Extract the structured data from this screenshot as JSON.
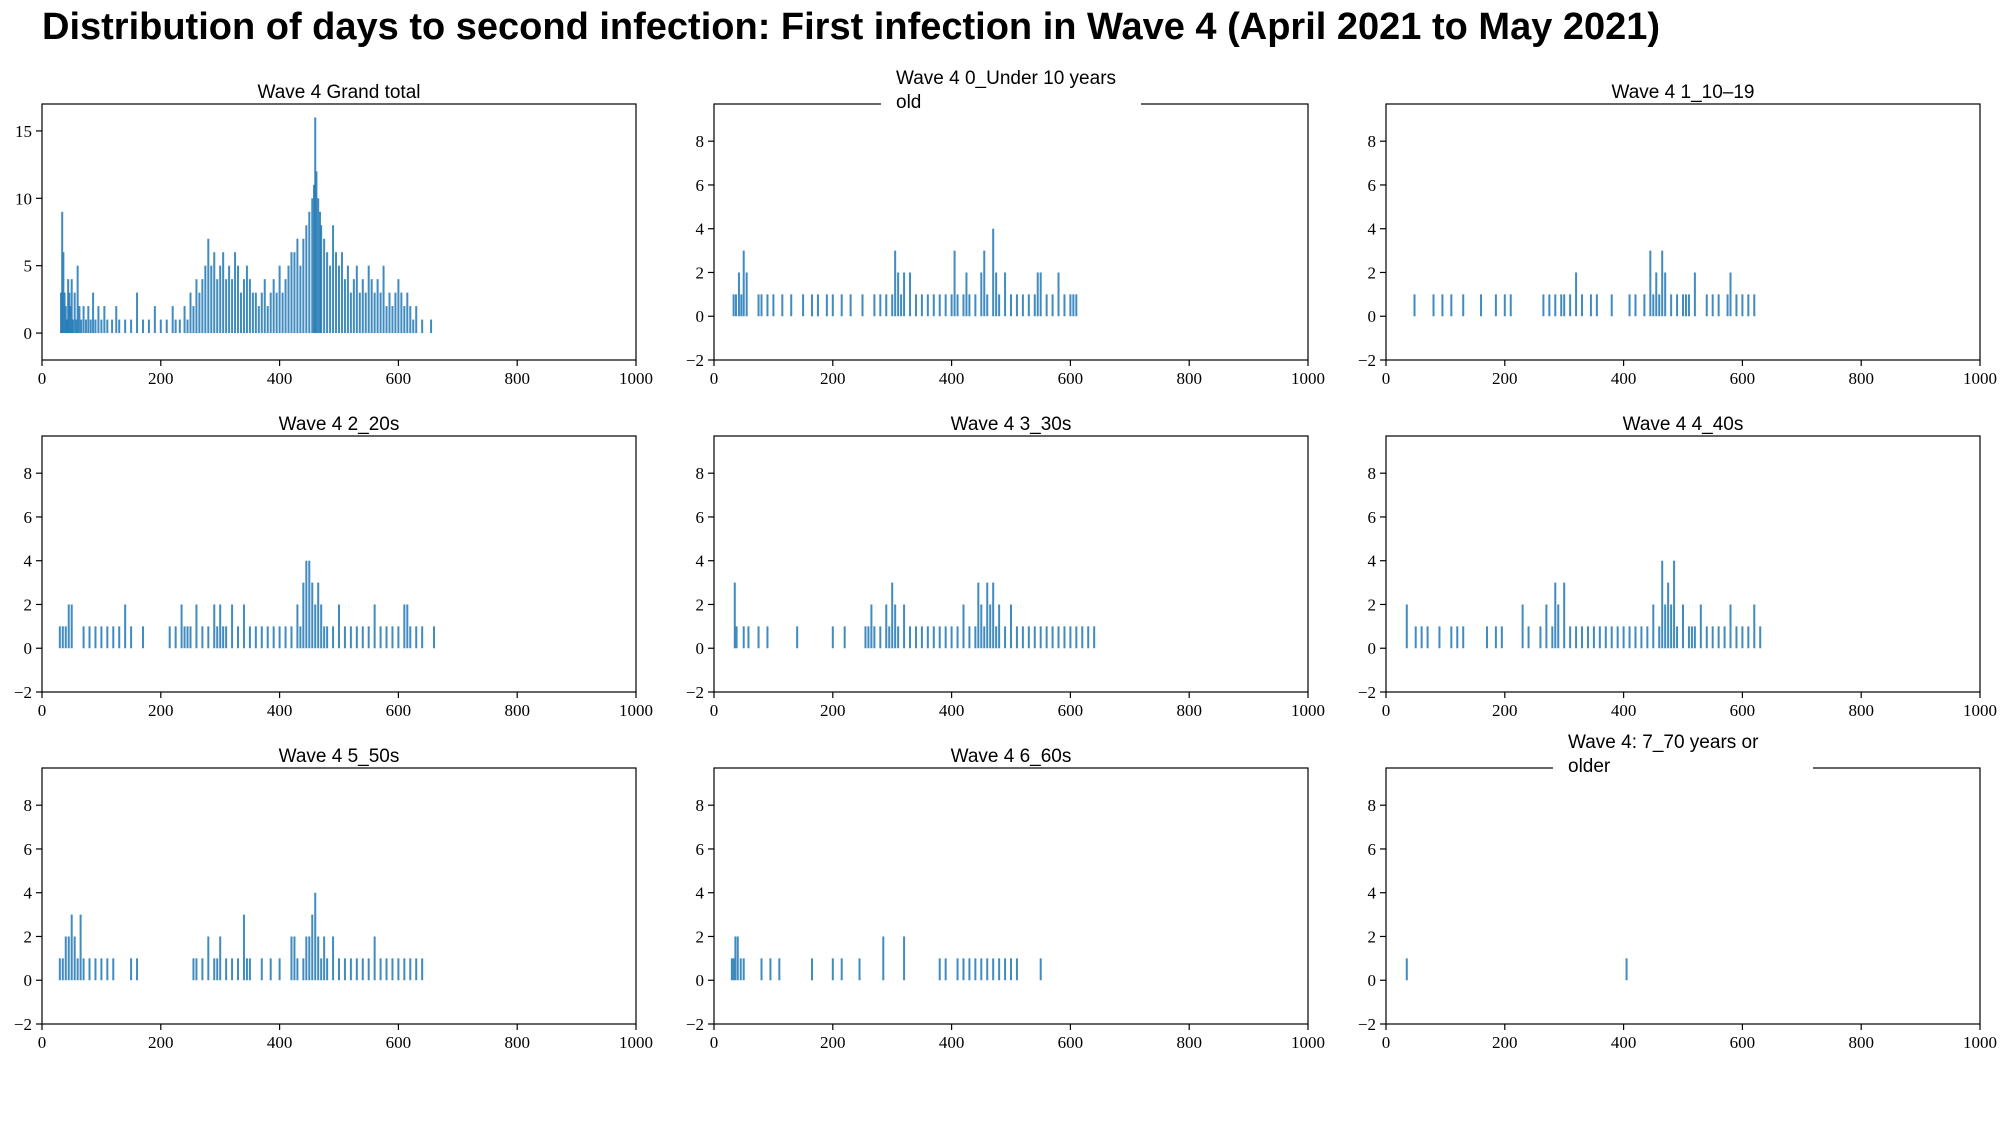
{
  "title": "Distribution of days to second infection: First infection in Wave 4 (April 2021 to May 2021)",
  "colors": {
    "bar": "#1f77b4",
    "axis": "#000000",
    "background": "#ffffff"
  },
  "chart_data": [
    {
      "type": "bar",
      "title_lines": [
        "Wave 4  Grand total"
      ],
      "xlim": [
        0,
        1000
      ],
      "ylim": [
        -2,
        17
      ],
      "xticks": [
        0,
        200,
        400,
        600,
        800,
        1000
      ],
      "yticks": [
        0,
        5,
        10,
        15
      ],
      "grid": false,
      "x": [
        32,
        34,
        36,
        38,
        40,
        42,
        44,
        46,
        48,
        50,
        52,
        55,
        58,
        60,
        63,
        66,
        70,
        74,
        78,
        82,
        86,
        90,
        95,
        100,
        105,
        110,
        118,
        125,
        130,
        140,
        150,
        160,
        170,
        180,
        190,
        200,
        210,
        220,
        225,
        232,
        240,
        245,
        250,
        255,
        260,
        265,
        270,
        275,
        280,
        285,
        290,
        295,
        300,
        305,
        310,
        315,
        320,
        325,
        330,
        335,
        340,
        345,
        350,
        355,
        360,
        365,
        370,
        375,
        380,
        385,
        390,
        395,
        400,
        405,
        410,
        415,
        420,
        425,
        430,
        435,
        440,
        445,
        450,
        455,
        458,
        460,
        462,
        465,
        468,
        470,
        475,
        480,
        485,
        490,
        495,
        500,
        505,
        510,
        515,
        520,
        525,
        530,
        535,
        540,
        545,
        550,
        555,
        560,
        565,
        570,
        575,
        580,
        585,
        590,
        595,
        600,
        605,
        610,
        615,
        620,
        625,
        630,
        640,
        655
      ],
      "values": [
        3,
        9,
        6,
        3,
        2,
        1,
        4,
        3,
        2,
        4,
        1,
        3,
        1,
        5,
        2,
        1,
        2,
        1,
        2,
        1,
        3,
        1,
        2,
        1,
        2,
        1,
        1,
        2,
        1,
        1,
        1,
        3,
        1,
        1,
        2,
        1,
        1,
        2,
        1,
        1,
        2,
        1,
        3,
        2,
        4,
        3,
        4,
        5,
        7,
        5,
        6,
        4,
        5,
        6,
        4,
        5,
        4,
        6,
        5,
        3,
        4,
        5,
        4,
        3,
        3,
        2,
        3,
        4,
        2,
        3,
        4,
        3,
        5,
        3,
        4,
        5,
        6,
        6,
        7,
        5,
        7,
        8,
        9,
        10,
        11,
        16,
        12,
        10,
        9,
        8,
        7,
        6,
        5,
        8,
        6,
        5,
        6,
        4,
        5,
        3,
        4,
        5,
        3,
        4,
        3,
        5,
        4,
        3,
        4,
        3,
        5,
        2,
        3,
        2,
        3,
        4,
        3,
        2,
        3,
        2,
        1,
        2,
        1,
        1
      ]
    },
    {
      "type": "bar",
      "title_lines": [
        "Wave 4  0_Under 10 years",
        "old"
      ],
      "xlim": [
        0,
        1000
      ],
      "ylim": [
        -2,
        9.7
      ],
      "xticks": [
        0,
        200,
        400,
        600,
        800,
        1000
      ],
      "yticks": [
        -2,
        0,
        2,
        4,
        6,
        8
      ],
      "grid": false,
      "x": [
        33,
        37,
        42,
        46,
        50,
        55,
        75,
        80,
        90,
        100,
        115,
        130,
        150,
        165,
        175,
        190,
        200,
        215,
        230,
        250,
        270,
        280,
        290,
        300,
        305,
        310,
        315,
        320,
        330,
        340,
        350,
        360,
        370,
        380,
        390,
        400,
        405,
        410,
        420,
        425,
        430,
        440,
        450,
        455,
        460,
        470,
        475,
        480,
        490,
        500,
        510,
        520,
        530,
        540,
        545,
        550,
        560,
        570,
        580,
        590,
        600,
        605,
        610
      ],
      "values": [
        1,
        1,
        2,
        1,
        3,
        2,
        1,
        1,
        1,
        1,
        1,
        1,
        1,
        1,
        1,
        1,
        1,
        1,
        1,
        1,
        1,
        1,
        1,
        1,
        3,
        2,
        1,
        2,
        2,
        1,
        1,
        1,
        1,
        1,
        1,
        1,
        3,
        1,
        1,
        2,
        1,
        1,
        2,
        3,
        1,
        4,
        2,
        1,
        2,
        1,
        1,
        1,
        1,
        1,
        2,
        2,
        1,
        1,
        2,
        1,
        1,
        1,
        1
      ]
    },
    {
      "type": "bar",
      "title_lines": [
        "Wave 4  1_10–19"
      ],
      "xlim": [
        0,
        1000
      ],
      "ylim": [
        -2,
        9.7
      ],
      "xticks": [
        0,
        200,
        400,
        600,
        800,
        1000
      ],
      "yticks": [
        -2,
        0,
        2,
        4,
        6,
        8
      ],
      "grid": false,
      "x": [
        48,
        80,
        95,
        110,
        130,
        160,
        185,
        200,
        210,
        265,
        275,
        285,
        295,
        300,
        310,
        320,
        330,
        345,
        355,
        380,
        410,
        420,
        435,
        445,
        450,
        455,
        460,
        465,
        470,
        480,
        490,
        500,
        505,
        510,
        520,
        540,
        550,
        560,
        575,
        580,
        590,
        600,
        610,
        620
      ],
      "values": [
        1,
        1,
        1,
        1,
        1,
        1,
        1,
        1,
        1,
        1,
        1,
        1,
        1,
        1,
        1,
        2,
        1,
        1,
        1,
        1,
        1,
        1,
        1,
        3,
        1,
        2,
        1,
        3,
        2,
        1,
        1,
        1,
        1,
        1,
        2,
        1,
        1,
        1,
        1,
        2,
        1,
        1,
        1,
        1
      ]
    },
    {
      "type": "bar",
      "title_lines": [
        "Wave 4  2_20s"
      ],
      "xlim": [
        0,
        1000
      ],
      "ylim": [
        -2,
        9.7
      ],
      "xticks": [
        0,
        200,
        400,
        600,
        800,
        1000
      ],
      "yticks": [
        -2,
        0,
        2,
        4,
        6,
        8
      ],
      "grid": false,
      "x": [
        30,
        35,
        40,
        45,
        50,
        70,
        80,
        90,
        100,
        110,
        120,
        130,
        140,
        150,
        170,
        215,
        225,
        235,
        240,
        245,
        250,
        260,
        270,
        280,
        290,
        295,
        300,
        305,
        310,
        320,
        330,
        340,
        350,
        360,
        370,
        380,
        390,
        400,
        410,
        420,
        430,
        435,
        440,
        445,
        450,
        455,
        460,
        465,
        470,
        475,
        480,
        490,
        500,
        510,
        520,
        530,
        540,
        550,
        560,
        570,
        580,
        590,
        600,
        610,
        615,
        620,
        630,
        640,
        660
      ],
      "values": [
        1,
        1,
        1,
        2,
        2,
        1,
        1,
        1,
        1,
        1,
        1,
        1,
        2,
        1,
        1,
        1,
        1,
        2,
        1,
        1,
        1,
        2,
        1,
        1,
        2,
        1,
        2,
        1,
        1,
        2,
        1,
        2,
        1,
        1,
        1,
        1,
        1,
        1,
        1,
        1,
        2,
        1,
        3,
        4,
        4,
        3,
        2,
        3,
        2,
        1,
        1,
        1,
        2,
        1,
        1,
        1,
        1,
        1,
        2,
        1,
        1,
        1,
        1,
        2,
        2,
        1,
        1,
        1,
        1
      ]
    },
    {
      "type": "bar",
      "title_lines": [
        "Wave 4  3_30s"
      ],
      "xlim": [
        0,
        1000
      ],
      "ylim": [
        -2,
        9.7
      ],
      "xticks": [
        0,
        200,
        400,
        600,
        800,
        1000
      ],
      "yticks": [
        -2,
        0,
        2,
        4,
        6,
        8
      ],
      "grid": false,
      "x": [
        35,
        38,
        50,
        58,
        75,
        90,
        140,
        200,
        220,
        255,
        260,
        265,
        270,
        280,
        290,
        295,
        300,
        305,
        310,
        320,
        330,
        340,
        350,
        360,
        370,
        380,
        390,
        400,
        410,
        420,
        430,
        440,
        445,
        450,
        455,
        460,
        465,
        470,
        475,
        480,
        490,
        500,
        510,
        520,
        530,
        540,
        550,
        560,
        570,
        580,
        590,
        600,
        610,
        620,
        630,
        640
      ],
      "values": [
        3,
        1,
        1,
        1,
        1,
        1,
        1,
        1,
        1,
        1,
        1,
        2,
        1,
        1,
        2,
        1,
        3,
        2,
        1,
        2,
        1,
        1,
        1,
        1,
        1,
        1,
        1,
        1,
        1,
        2,
        1,
        1,
        3,
        2,
        1,
        3,
        2,
        3,
        1,
        2,
        1,
        2,
        1,
        1,
        1,
        1,
        1,
        1,
        1,
        1,
        1,
        1,
        1,
        1,
        1,
        1
      ]
    },
    {
      "type": "bar",
      "title_lines": [
        "Wave 4  4_40s"
      ],
      "xlim": [
        0,
        1000
      ],
      "ylim": [
        -2,
        9.7
      ],
      "xticks": [
        0,
        200,
        400,
        600,
        800,
        1000
      ],
      "yticks": [
        -2,
        0,
        2,
        4,
        6,
        8
      ],
      "grid": false,
      "x": [
        35,
        50,
        60,
        70,
        90,
        110,
        120,
        130,
        170,
        185,
        195,
        230,
        240,
        260,
        270,
        280,
        285,
        290,
        300,
        310,
        320,
        330,
        340,
        350,
        360,
        370,
        380,
        390,
        400,
        410,
        420,
        430,
        440,
        450,
        460,
        465,
        470,
        475,
        480,
        485,
        490,
        500,
        510,
        515,
        520,
        530,
        540,
        550,
        560,
        570,
        580,
        590,
        600,
        610,
        620,
        630
      ],
      "values": [
        2,
        1,
        1,
        1,
        1,
        1,
        1,
        1,
        1,
        1,
        1,
        2,
        1,
        1,
        2,
        1,
        3,
        2,
        3,
        1,
        1,
        1,
        1,
        1,
        1,
        1,
        1,
        1,
        1,
        1,
        1,
        1,
        1,
        2,
        1,
        4,
        2,
        3,
        2,
        4,
        1,
        2,
        1,
        1,
        1,
        2,
        1,
        1,
        1,
        1,
        2,
        1,
        1,
        1,
        2,
        1
      ]
    },
    {
      "type": "bar",
      "title_lines": [
        "Wave 4  5_50s"
      ],
      "xlim": [
        0,
        1000
      ],
      "ylim": [
        -2,
        9.7
      ],
      "xticks": [
        0,
        200,
        400,
        600,
        800,
        1000
      ],
      "yticks": [
        -2,
        0,
        2,
        4,
        6,
        8
      ],
      "grid": false,
      "x": [
        30,
        35,
        40,
        45,
        50,
        55,
        60,
        65,
        70,
        80,
        90,
        100,
        110,
        120,
        150,
        160,
        255,
        260,
        270,
        280,
        290,
        295,
        300,
        310,
        320,
        330,
        340,
        345,
        350,
        370,
        385,
        400,
        420,
        425,
        430,
        440,
        445,
        450,
        455,
        460,
        465,
        470,
        475,
        480,
        490,
        500,
        510,
        520,
        530,
        540,
        550,
        560,
        570,
        580,
        590,
        600,
        610,
        620,
        630,
        640
      ],
      "values": [
        1,
        1,
        2,
        2,
        3,
        2,
        1,
        3,
        1,
        1,
        1,
        1,
        1,
        1,
        1,
        1,
        1,
        1,
        1,
        2,
        1,
        1,
        2,
        1,
        1,
        1,
        3,
        1,
        1,
        1,
        1,
        1,
        2,
        2,
        1,
        1,
        2,
        2,
        3,
        4,
        2,
        1,
        2,
        1,
        2,
        1,
        1,
        1,
        1,
        1,
        1,
        2,
        1,
        1,
        1,
        1,
        1,
        1,
        1,
        1
      ]
    },
    {
      "type": "bar",
      "title_lines": [
        "Wave 4  6_60s"
      ],
      "xlim": [
        0,
        1000
      ],
      "ylim": [
        -2,
        9.7
      ],
      "xticks": [
        0,
        200,
        400,
        600,
        800,
        1000
      ],
      "yticks": [
        -2,
        0,
        2,
        4,
        6,
        8
      ],
      "grid": false,
      "x": [
        30,
        33,
        36,
        40,
        45,
        50,
        80,
        95,
        110,
        165,
        200,
        215,
        245,
        285,
        320,
        380,
        390,
        410,
        420,
        430,
        440,
        450,
        460,
        470,
        480,
        490,
        500,
        510,
        550
      ],
      "values": [
        1,
        1,
        2,
        2,
        1,
        1,
        1,
        1,
        1,
        1,
        1,
        1,
        1,
        2,
        2,
        1,
        1,
        1,
        1,
        1,
        1,
        1,
        1,
        1,
        1,
        1,
        1,
        1,
        1
      ]
    },
    {
      "type": "bar",
      "title_lines": [
        "Wave 4:  7_70 years or",
        "older"
      ],
      "xlim": [
        0,
        1000
      ],
      "ylim": [
        -2,
        9.7
      ],
      "xticks": [
        0,
        200,
        400,
        600,
        800,
        1000
      ],
      "yticks": [
        -2,
        0,
        2,
        4,
        6,
        8
      ],
      "grid": false,
      "x": [
        35,
        405
      ],
      "values": [
        1,
        1
      ]
    }
  ]
}
